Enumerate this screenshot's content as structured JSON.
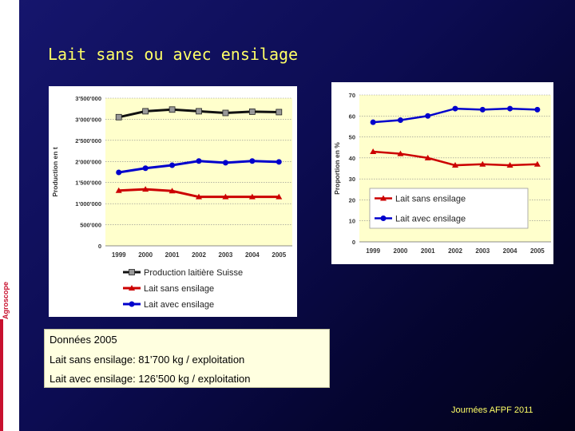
{
  "slide": {
    "title": "Lait sans ou avec ensilage",
    "brand": "Agroscope",
    "footer": "Journées AFPF 2011"
  },
  "colors": {
    "title": "#ffff66",
    "plot_bg": "#ffffcc",
    "series_black": "#111111",
    "series_red": "#cc0000",
    "series_blue": "#0000cc"
  },
  "notes": {
    "heading": "Données 2005",
    "line1_label": "Lait sans ensilage: ",
    "line1_value": "81’700 kg / exploitation",
    "line2_label": "Lait avec ensilage: ",
    "line2_value": "126’500 kg / exploitation"
  },
  "chart_data": [
    {
      "type": "line",
      "ylabel": "Production en t",
      "x": [
        "1999",
        "2000",
        "2001",
        "2002",
        "2003",
        "2004",
        "2005"
      ],
      "ylim": [
        0,
        3500000
      ],
      "yticks": [
        0,
        500000,
        1000000,
        1500000,
        2000000,
        2500000,
        3000000,
        3500000
      ],
      "ytick_labels": [
        "0",
        "500'000",
        "1'000'000",
        "1'500'000",
        "2'000'000",
        "2'500'000",
        "3'000'000",
        "3'500'000"
      ],
      "legend_position": "bottom",
      "series": [
        {
          "name": "Production laitière Suisse",
          "marker": "square",
          "color": "#111111",
          "values": [
            3050000,
            3190000,
            3230000,
            3190000,
            3150000,
            3180000,
            3170000
          ]
        },
        {
          "name": "Lait sans ensilage",
          "marker": "triangle",
          "color": "#cc0000",
          "values": [
            1310000,
            1340000,
            1300000,
            1160000,
            1160000,
            1160000,
            1160000
          ]
        },
        {
          "name": "Lait avec ensilage",
          "marker": "circle",
          "color": "#0000cc",
          "values": [
            1740000,
            1840000,
            1910000,
            2010000,
            1970000,
            2010000,
            1990000
          ]
        }
      ]
    },
    {
      "type": "line",
      "ylabel": "Proportion en %",
      "x": [
        "1999",
        "2000",
        "2001",
        "2002",
        "2003",
        "2004",
        "2005"
      ],
      "ylim": [
        0,
        70
      ],
      "yticks": [
        0,
        10,
        20,
        30,
        40,
        50,
        60,
        70
      ],
      "ytick_labels": [
        "0",
        "10",
        "20",
        "30",
        "40",
        "50",
        "60",
        "70"
      ],
      "legend_position": "inside-bottom",
      "series": [
        {
          "name": "Lait sans ensilage",
          "marker": "triangle",
          "color": "#cc0000",
          "values": [
            43,
            42,
            40,
            36.5,
            37,
            36.5,
            37
          ]
        },
        {
          "name": "Lait avec ensilage",
          "marker": "circle",
          "color": "#0000cc",
          "values": [
            57,
            58,
            60,
            63.5,
            63,
            63.5,
            63
          ]
        }
      ]
    }
  ]
}
